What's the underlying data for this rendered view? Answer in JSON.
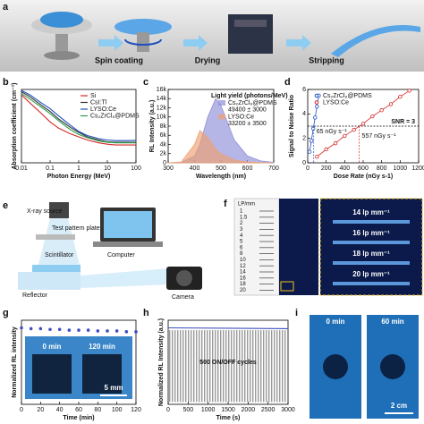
{
  "panel_labels": [
    "a",
    "b",
    "c",
    "d",
    "e",
    "f",
    "g",
    "h",
    "i"
  ],
  "panel_a": {
    "steps": [
      "Spin coating",
      "Drying",
      "Stripping"
    ]
  },
  "panel_e": {
    "labels": [
      "X-ray source",
      "Test pattern plate",
      "Scintillator",
      "Computer",
      "Reflector",
      "Camera"
    ]
  },
  "panel_f": {
    "plate_header": "LP/mm",
    "plate_numbers": [
      "1",
      "1.5",
      "2",
      "3",
      "4",
      "5",
      "6",
      "8",
      "10",
      "12",
      "14",
      "16",
      "18",
      "20"
    ],
    "zoom_labels": [
      "14 lp mm⁻¹",
      "16 lp mm⁻¹",
      "18 lp mm⁻¹",
      "20 lp mm⁻¹"
    ]
  },
  "panel_i": {
    "labels": [
      "0 min",
      "60 min",
      "2 cm"
    ]
  },
  "chart_data": [
    {
      "type": "line",
      "x_label": "Photon Energy (MeV)",
      "y_label": "Absorption coefficient (cm⁻¹)",
      "xlog": true,
      "ylog": true,
      "xlim": [
        0.01,
        100
      ],
      "xticks": [
        0.01,
        0.1,
        1,
        10,
        100
      ],
      "ylim": [
        0.01,
        100000
      ],
      "legend": "upper right",
      "x": [
        0.01,
        0.02,
        0.05,
        0.1,
        0.2,
        0.5,
        1,
        2,
        5,
        10,
        20,
        50,
        100
      ],
      "series": [
        {
          "name": "Si",
          "color": "#d62728",
          "values": [
            30000,
            5000,
            500,
            80,
            20,
            6,
            3,
            1.5,
            0.8,
            0.6,
            0.5,
            0.5,
            0.5
          ]
        },
        {
          "name": "CsI:Tl",
          "color": "#333333",
          "values": [
            60000,
            20000,
            3000,
            800,
            150,
            25,
            8,
            3,
            1.5,
            1,
            0.9,
            0.9,
            0.9
          ]
        },
        {
          "name": "LYSO:Ce",
          "color": "#1f4fbf",
          "values": [
            80000,
            30000,
            5000,
            1500,
            300,
            40,
            10,
            4,
            2,
            1.5,
            1.3,
            1.3,
            1.4
          ]
        },
        {
          "name": "Cs₂ZrCl₆@PDMS",
          "color": "#2a9d4a",
          "values": [
            40000,
            12000,
            2000,
            500,
            100,
            15,
            5,
            2.5,
            1.2,
            0.9,
            0.8,
            0.8,
            0.8
          ]
        }
      ]
    },
    {
      "type": "area",
      "x_label": "Wavelength (nm)",
      "y_label": "RL Intensity (a.u.)",
      "xlim": [
        300,
        700
      ],
      "xticks": [
        300,
        400,
        500,
        600,
        700
      ],
      "ylim": [
        0,
        16000
      ],
      "yticks": [
        0,
        {
          "value": 2000,
          "label": "2k"
        },
        {
          "value": 4000,
          "label": "4k"
        },
        {
          "value": 6000,
          "label": "6k"
        },
        {
          "value": 8000,
          "label": "8k"
        },
        {
          "value": 10000,
          "label": "10k"
        },
        {
          "value": 12000,
          "label": "12k"
        },
        {
          "value": 14000,
          "label": "14k"
        },
        {
          "value": 16000,
          "label": "16k"
        }
      ],
      "legend": "upper right",
      "legend_title": "Light yield (photons/MeV)",
      "x": [
        300,
        350,
        400,
        420,
        450,
        480,
        500,
        550,
        600,
        650,
        700
      ],
      "series": [
        {
          "name": "Cs₂ZrCl₆@PDMS",
          "light_yield": "49400 ± 3000",
          "color": "#8f8fd8",
          "values": [
            0,
            100,
            1500,
            4000,
            10000,
            14000,
            12500,
            5000,
            1500,
            400,
            100
          ]
        },
        {
          "name": "LYSO:Ce",
          "light_yield": "33200 ± 3500",
          "color": "#f0a070",
          "values": [
            0,
            200,
            4000,
            7000,
            5500,
            3000,
            2000,
            600,
            150,
            50,
            0
          ]
        }
      ]
    },
    {
      "type": "scatter",
      "x_label": "Dose Rate (nGy s-1)",
      "y_label": "Signal to Noise Ratio",
      "xlim": [
        0,
        1200
      ],
      "xticks": [
        0,
        200,
        400,
        600,
        800,
        1000,
        1200
      ],
      "ylim": [
        0,
        6
      ],
      "yticks": [
        0,
        2,
        4,
        6
      ],
      "legend": "upper left",
      "threshold": {
        "value": 3,
        "label": "SNR = 3"
      },
      "lods": [
        {
          "value": 65,
          "label": "65 nGy s⁻¹",
          "color": "#1f4fbf"
        },
        {
          "value": 557,
          "label": "557 nGy s⁻¹",
          "color": "#d62728"
        }
      ],
      "series": [
        {
          "name": "Cs₂ZrCl₆@PDMS",
          "color": "#1f4fbf",
          "x": [
            20,
            40,
            60,
            80,
            100,
            120
          ],
          "values": [
            0.9,
            1.8,
            2.8,
            3.7,
            4.6,
            5.5
          ]
        },
        {
          "name": "LYSO:Ce",
          "color": "#d62728",
          "x": [
            100,
            200,
            300,
            400,
            500,
            600,
            700,
            800,
            900,
            1000,
            1100
          ],
          "values": [
            0.5,
            1.1,
            1.6,
            2.2,
            2.7,
            3.2,
            3.8,
            4.3,
            4.8,
            5.4,
            5.9
          ]
        }
      ]
    },
    {
      "type": "errorbar",
      "x_label": "Time (min)",
      "y_label": "Normalized RL intensity",
      "xlim": [
        0,
        120
      ],
      "xticks": [
        0,
        20,
        40,
        60,
        80,
        100,
        120
      ],
      "ylim": [
        0,
        1.1
      ],
      "inset_labels": [
        "0 min",
        "120 min",
        "5 mm"
      ],
      "x": [
        0,
        10,
        20,
        30,
        40,
        50,
        60,
        70,
        80,
        90,
        100,
        110,
        120
      ],
      "series": [
        {
          "color": "#3f4fbf",
          "values": [
            1.0,
            0.99,
            0.99,
            0.98,
            0.98,
            0.97,
            0.97,
            0.97,
            0.96,
            0.96,
            0.96,
            0.95,
            0.95
          ],
          "errors": [
            0.02,
            0.02,
            0.02,
            0.02,
            0.02,
            0.02,
            0.02,
            0.02,
            0.02,
            0.02,
            0.02,
            0.02,
            0.02
          ]
        }
      ]
    },
    {
      "type": "line",
      "x_label": "Time (s)",
      "y_label": "Normalized RL Intensity (a.u.)",
      "xlim": [
        0,
        3000
      ],
      "xticks": [
        0,
        500,
        1000,
        1500,
        2000,
        2500,
        3000
      ],
      "ylim": [
        0,
        1.1
      ],
      "annotation": "500 ON/OFF cycles",
      "x": [
        0,
        3000
      ],
      "series": [
        {
          "color": "#3f4fbf",
          "values": [
            1.0,
            0.99
          ]
        }
      ]
    }
  ]
}
